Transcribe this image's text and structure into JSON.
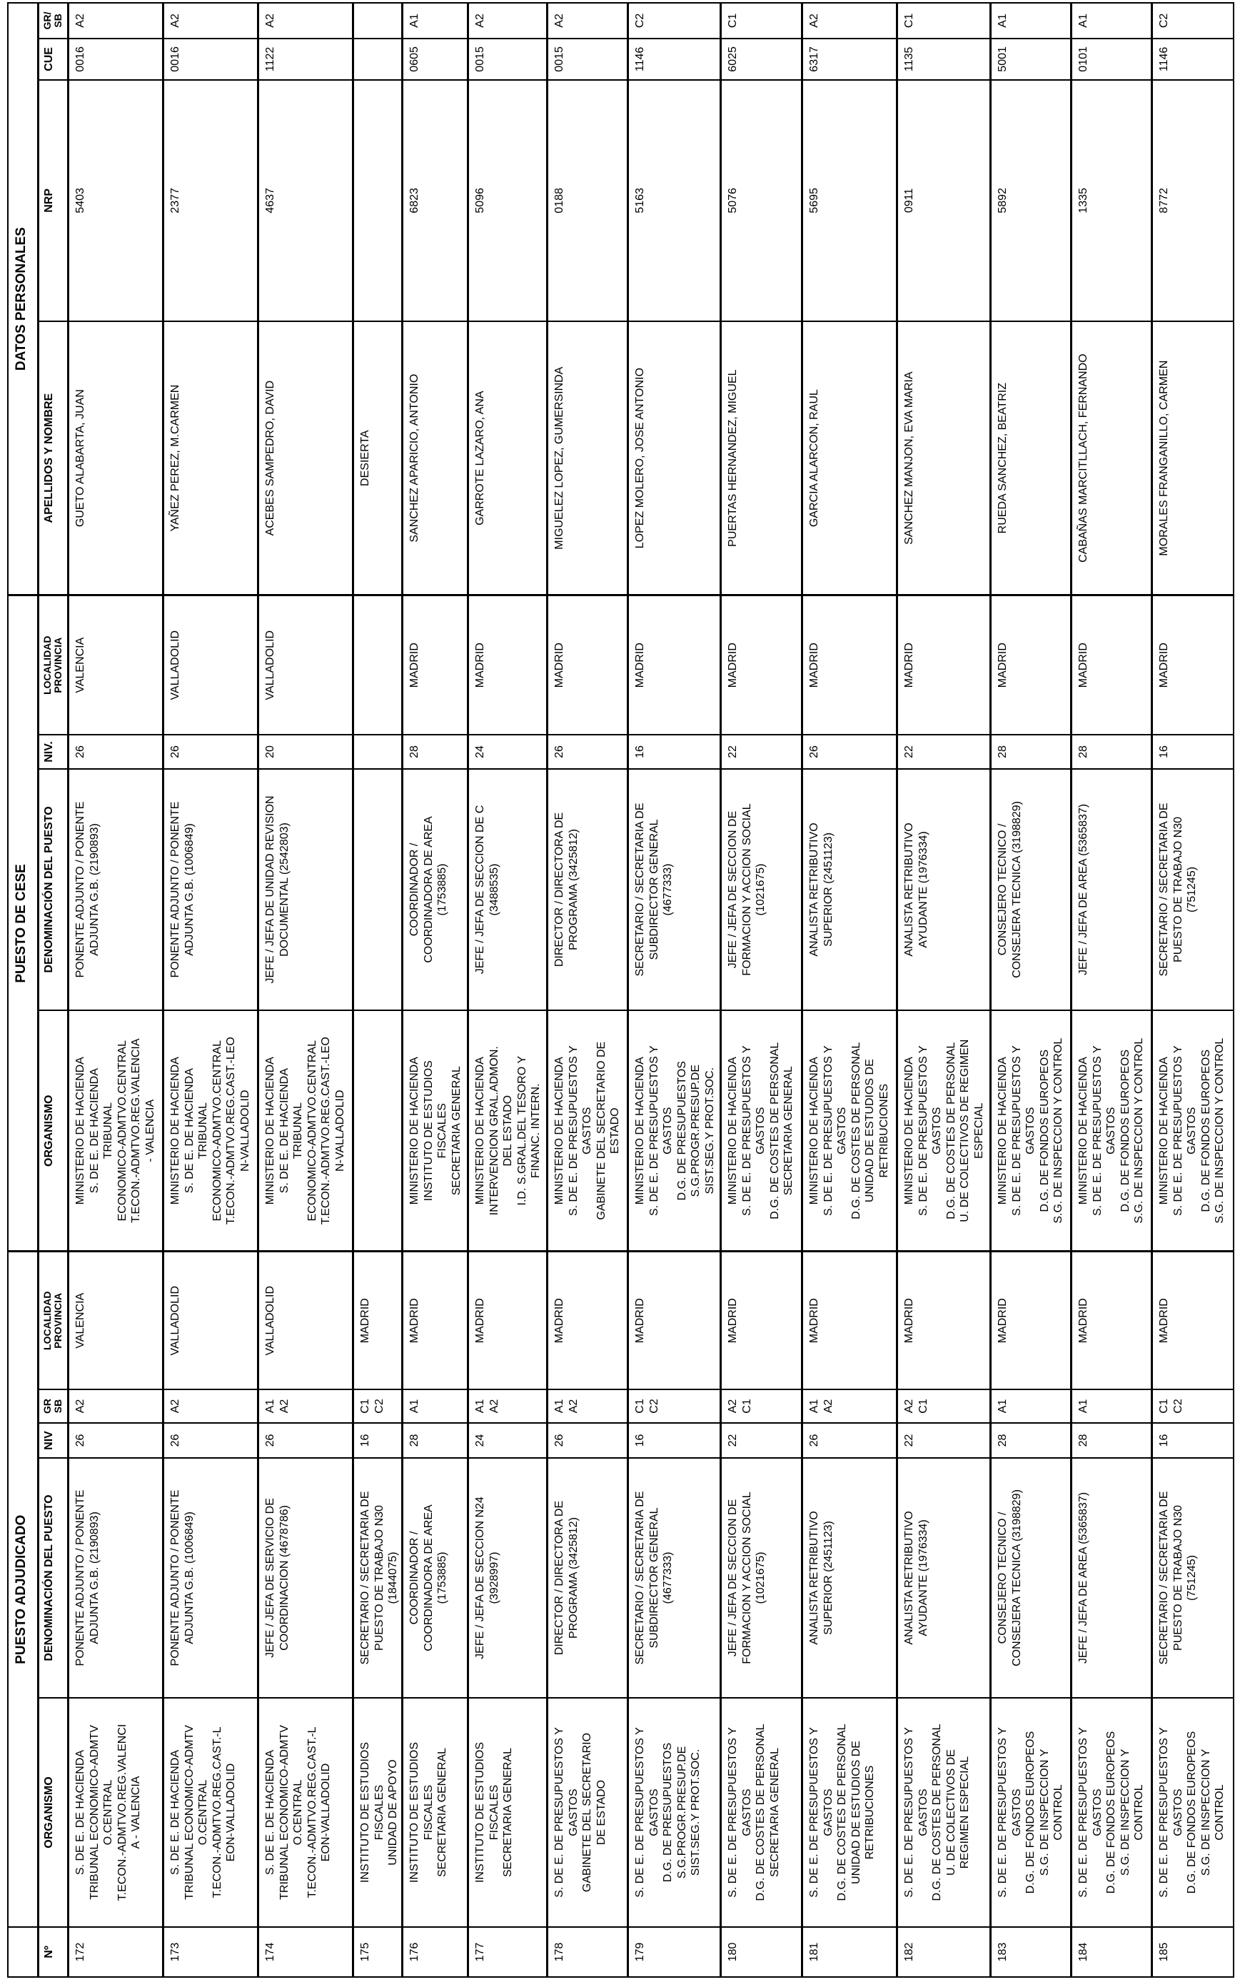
{
  "groups": {
    "adjudicado": "PUESTO ADJUDICADO",
    "cese": "PUESTO DE CESE",
    "personales": "DATOS PERSONALES"
  },
  "headers": {
    "num": "Nº",
    "organismo": "ORGANISMO",
    "denominacion": "DENOMINACIÓN DEL PUESTO",
    "niv_adj": "NIV",
    "gr_adj": "GR\nSB",
    "localidad": "LOCALIDAD\nPROVINCIA",
    "niv_cese": "NIV.",
    "apellidos": "APELLIDOS Y NOMBRE",
    "nrp": "NRP",
    "cue": "CUE",
    "gr_pers": "GR/\nSB"
  },
  "rows": [
    {
      "num": "172",
      "adj": {
        "org": "S. DE E. DE HACIENDA\nTRIBUNAL ECONOMICO-ADMTV\nO.CENTRAL\nT.ECON.-ADMTVO.REG.VALENCI\nA - VALENCIA",
        "den": "PONENTE ADJUNTO / PONENTE\nADJUNTA G.B. (2190893)",
        "niv": "26",
        "gr": "A2",
        "loc": "VALENCIA"
      },
      "cese": {
        "org": "MINISTERIO DE HACIENDA\nS. DE E. DE HACIENDA\nTRIBUNAL\nECONOMICO-ADMTVO.CENTRAL\nT.ECON.-ADMTVO.REG.VALENCIA\n- VALENCIA",
        "den": "PONENTE ADJUNTO / PONENTE\nADJUNTA G.B. (2190893)",
        "niv": "26",
        "loc": "VALENCIA"
      },
      "pers": {
        "nombre": "GUETO ALABARTA, JUAN",
        "nrp": "5403",
        "cue": "0016",
        "gr": "A2"
      }
    },
    {
      "num": "173",
      "adj": {
        "org": "S. DE E. DE HACIENDA\nTRIBUNAL ECONOMICO-ADMTV\nO.CENTRAL\nT.ECON.-ADMTVO.REG.CAST.-L\nEON-VALLADOLID",
        "den": "PONENTE ADJUNTO / PONENTE\nADJUNTA G.B. (1006849)",
        "niv": "26",
        "gr": "A2",
        "loc": "VALLADOLID"
      },
      "cese": {
        "org": "MINISTERIO DE HACIENDA\nS. DE E. DE HACIENDA\nTRIBUNAL\nECONOMICO-ADMTVO.CENTRAL\nT.ECON.-ADMTVO.REG.CAST.-LEO\nN-VALLADOLID",
        "den": "PONENTE ADJUNTO / PONENTE\nADJUNTA G.B. (1006849)",
        "niv": "26",
        "loc": "VALLADOLID"
      },
      "pers": {
        "nombre": "YAÑEZ PEREZ, M.CARMEN",
        "nrp": "2377",
        "cue": "0016",
        "gr": "A2"
      }
    },
    {
      "num": "174",
      "adj": {
        "org": "S. DE E. DE HACIENDA\nTRIBUNAL ECONOMICO-ADMTV\nO.CENTRAL\nT.ECON.-ADMTVO.REG.CAST.-L\nEON-VALLADOLID",
        "den": "JEFE / JEFA DE SERVICIO DE\nCOORDINACION (4678786)",
        "niv": "26",
        "gr": "A1\nA2",
        "loc": "VALLADOLID"
      },
      "cese": {
        "org": "MINISTERIO DE HACIENDA\nS. DE E. DE HACIENDA\nTRIBUNAL\nECONOMICO-ADMTVO.CENTRAL\nT.ECON.-ADMTVO.REG.CAST.-LEO\nN-VALLADOLID",
        "den": "JEFE / JEFA DE UNIDAD REVISION\nDOCUMENTAL (2542803)",
        "niv": "20",
        "loc": "VALLADOLID"
      },
      "pers": {
        "nombre": "ACEBES SAMPEDRO, DAVID",
        "nrp": "4637",
        "cue": "1122",
        "gr": "A2"
      }
    },
    {
      "num": "175",
      "adj": {
        "org": "INSTITUTO DE ESTUDIOS\nFISCALES\nUNIDAD DE APOYO",
        "den": "SECRETARIO / SECRETARIA DE\nPUESTO DE TRABAJO N30\n(1844075)",
        "niv": "16",
        "gr": "C1\nC2",
        "loc": "MADRID"
      },
      "cese": {
        "org": "",
        "den": "",
        "niv": "",
        "loc": ""
      },
      "pers": {
        "nombre": "DESIERTA",
        "nrp": "",
        "cue": "",
        "gr": ""
      }
    },
    {
      "num": "176",
      "adj": {
        "org": "INSTITUTO DE ESTUDIOS\nFISCALES\nSECRETARIA GENERAL",
        "den": "COORDINADOR /\nCOORDINADORA DE AREA\n(1753885)",
        "niv": "28",
        "gr": "A1",
        "loc": "MADRID"
      },
      "cese": {
        "org": "MINISTERIO DE HACIENDA\nINSTITUTO DE ESTUDIOS\nFISCALES\nSECRETARIA GENERAL",
        "den": "COORDINADOR /\nCOORDINADORA DE AREA\n(1753885)",
        "niv": "28",
        "loc": "MADRID"
      },
      "pers": {
        "nombre": "SANCHEZ APARICIO, ANTONIO",
        "nrp": "6823",
        "cue": "0605",
        "gr": "A1"
      }
    },
    {
      "num": "177",
      "adj": {
        "org": "INSTITUTO DE ESTUDIOS\nFISCALES\nSECRETARIA GENERAL",
        "den": "JEFE / JEFA DE SECCION N24\n(3928997)",
        "niv": "24",
        "gr": "A1\nA2",
        "loc": "MADRID"
      },
      "cese": {
        "org": "MINISTERIO DE HACIENDA\nINTERVENCION GRAL.ADMON.\nDEL ESTADO\nI.D. S.GRAL.DEL TESORO Y\nFINANC. INTERN.",
        "den": "JEFE / JEFA DE SECCION DE C\n(3488535)",
        "niv": "24",
        "loc": "MADRID"
      },
      "pers": {
        "nombre": "GARROTE LAZARO, ANA",
        "nrp": "5096",
        "cue": "0015",
        "gr": "A2"
      }
    },
    {
      "num": "178",
      "adj": {
        "org": "S. DE E. DE PRESUPUESTOS Y\nGASTOS\nGABINETE DEL SECRETARIO\nDE ESTADO",
        "den": "DIRECTOR / DIRECTORA DE\nPROGRAMA (3425812)",
        "niv": "26",
        "gr": "A1\nA2",
        "loc": "MADRID"
      },
      "cese": {
        "org": "MINISTERIO DE HACIENDA\nS. DE E. DE PRESUPUESTOS Y\nGASTOS\nGABINETE DEL SECRETARIO DE\nESTADO",
        "den": "DIRECTOR / DIRECTORA DE\nPROGRAMA (3425812)",
        "niv": "26",
        "loc": "MADRID"
      },
      "pers": {
        "nombre": "MIGUELEZ LOPEZ, GUMERSINDA",
        "nrp": "0188",
        "cue": "0015",
        "gr": "A2"
      }
    },
    {
      "num": "179",
      "adj": {
        "org": "S. DE E. DE PRESUPUESTOS Y\nGASTOS\nD.G. DE PRESUPUESTOS\nS.G.PROGR.PRESUP.DE\nSIST.SEG.Y PROT.SOC.",
        "den": "SECRETARIO / SECRETARIA DE\nSUBDIRECTOR GENERAL\n(4677333)",
        "niv": "16",
        "gr": "C1\nC2",
        "loc": "MADRID"
      },
      "cese": {
        "org": "MINISTERIO DE HACIENDA\nS. DE E. DE PRESUPUESTOS Y\nGASTOS\nD.G. DE PRESUPUESTOS\nS.G.PROGR.PRESUP.DE\nSIST.SEG.Y PROT.SOC.",
        "den": "SECRETARIO / SECRETARIA DE\nSUBDIRECTOR GENERAL\n(4677333)",
        "niv": "16",
        "loc": "MADRID"
      },
      "pers": {
        "nombre": "LOPEZ MOLERO, JOSE ANTONIO",
        "nrp": "5163",
        "cue": "1146",
        "gr": "C2"
      }
    },
    {
      "num": "180",
      "adj": {
        "org": "S. DE E. DE PRESUPUESTOS Y\nGASTOS\nD.G. DE COSTES DE PERSONAL\nSECRETARIA GENERAL",
        "den": "JEFE / JEFA DE SECCION DE\nFORMACION Y ACCION SOCIAL\n(1021675)",
        "niv": "22",
        "gr": "A2\nC1",
        "loc": "MADRID"
      },
      "cese": {
        "org": "MINISTERIO DE HACIENDA\nS. DE E. DE PRESUPUESTOS Y\nGASTOS\nD.G. DE COSTES DE PERSONAL\nSECRETARIA GENERAL",
        "den": "JEFE / JEFA DE SECCION DE\nFORMACION Y ACCION SOCIAL\n(1021675)",
        "niv": "22",
        "loc": "MADRID"
      },
      "pers": {
        "nombre": "PUERTAS HERNANDEZ, MIGUEL",
        "nrp": "5076",
        "cue": "6025",
        "gr": "C1"
      }
    },
    {
      "num": "181",
      "adj": {
        "org": "S. DE E. DE PRESUPUESTOS Y\nGASTOS\nD.G. DE COSTES DE PERSONAL\nUNIDAD DE ESTUDIOS DE\nRETRIBUCIONES",
        "den": "ANALISTA RETRIBUTIVO\nSUPERIOR (2451123)",
        "niv": "26",
        "gr": "A1\nA2",
        "loc": "MADRID"
      },
      "cese": {
        "org": "MINISTERIO DE HACIENDA\nS. DE E. DE PRESUPUESTOS Y\nGASTOS\nD.G. DE COSTES DE PERSONAL\nUNIDAD DE ESTUDIOS DE\nRETRIBUCIONES",
        "den": "ANALISTA RETRIBUTIVO\nSUPERIOR (2451123)",
        "niv": "26",
        "loc": "MADRID"
      },
      "pers": {
        "nombre": "GARCIA ALARCON, RAUL",
        "nrp": "5695",
        "cue": "6317",
        "gr": "A2"
      }
    },
    {
      "num": "182",
      "adj": {
        "org": "S. DE E. DE PRESUPUESTOS Y\nGASTOS\nD.G. DE COSTES DE PERSONAL\nU. DE COLECTIVOS DE\nREGIMEN ESPECIAL",
        "den": "ANALISTA RETRIBUTIVO\nAYUDANTE (1976334)",
        "niv": "22",
        "gr": "A2\nC1",
        "loc": "MADRID"
      },
      "cese": {
        "org": "MINISTERIO DE HACIENDA\nS. DE E. DE PRESUPUESTOS Y\nGASTOS\nD.G. DE COSTES DE PERSONAL\nU. DE COLECTIVOS DE REGIMEN\nESPECIAL",
        "den": "ANALISTA RETRIBUTIVO\nAYUDANTE (1976334)",
        "niv": "22",
        "loc": "MADRID"
      },
      "pers": {
        "nombre": "SANCHEZ MANJON, EVA MARIA",
        "nrp": "0911",
        "cue": "1135",
        "gr": "C1"
      }
    },
    {
      "num": "183",
      "adj": {
        "org": "S. DE E. DE PRESUPUESTOS Y\nGASTOS\nD.G. DE FONDOS EUROPEOS\nS.G. DE INSPECCION Y\nCONTROL",
        "den": "CONSEJERO TECNICO /\nCONSEJERA TECNICA (3198829)",
        "niv": "28",
        "gr": "A1",
        "loc": "MADRID"
      },
      "cese": {
        "org": "MINISTERIO DE HACIENDA\nS. DE E. DE PRESUPUESTOS Y\nGASTOS\nD.G. DE FONDOS EUROPEOS\nS.G. DE INSPECCION Y CONTROL",
        "den": "CONSEJERO TECNICO /\nCONSEJERA TECNICA (3198829)",
        "niv": "28",
        "loc": "MADRID"
      },
      "pers": {
        "nombre": "RUEDA SANCHEZ, BEATRIZ",
        "nrp": "5892",
        "cue": "5001",
        "gr": "A1"
      }
    },
    {
      "num": "184",
      "adj": {
        "org": "S. DE E. DE PRESUPUESTOS Y\nGASTOS\nD.G. DE FONDOS EUROPEOS\nS.G. DE INSPECCION Y\nCONTROL",
        "den": "JEFE / JEFA DE AREA (5365837)",
        "niv": "28",
        "gr": "A1",
        "loc": "MADRID"
      },
      "cese": {
        "org": "MINISTERIO DE HACIENDA\nS. DE E. DE PRESUPUESTOS Y\nGASTOS\nD.G. DE FONDOS EUROPEOS\nS.G. DE INSPECCION Y CONTROL",
        "den": "JEFE / JEFA DE AREA (5365837)",
        "niv": "28",
        "loc": "MADRID"
      },
      "pers": {
        "nombre": "CABAÑAS MARCITLLACH, FERNANDO",
        "nrp": "1335",
        "cue": "0101",
        "gr": "A1"
      }
    },
    {
      "num": "185",
      "adj": {
        "org": "S. DE E. DE PRESUPUESTOS Y\nGASTOS\nD.G. DE FONDOS EUROPEOS\nS.G. DE INSPECCION Y\nCONTROL",
        "den": "SECRETARIO / SECRETARIA DE\nPUESTO DE TRABAJO N30\n(751245)",
        "niv": "16",
        "gr": "C1\nC2",
        "loc": "MADRID"
      },
      "cese": {
        "org": "MINISTERIO DE HACIENDA\nS. DE E. DE PRESUPUESTOS Y\nGASTOS\nD.G. DE FONDOS EUROPEOS\nS.G. DE INSPECCION Y CONTROL",
        "den": "SECRETARIO / SECRETARIA DE\nPUESTO DE TRABAJO N30\n(751245)",
        "niv": "16",
        "loc": "MADRID"
      },
      "pers": {
        "nombre": "MORALES FRANGANILLO, CARMEN",
        "nrp": "8772",
        "cue": "1146",
        "gr": "C2"
      }
    }
  ]
}
